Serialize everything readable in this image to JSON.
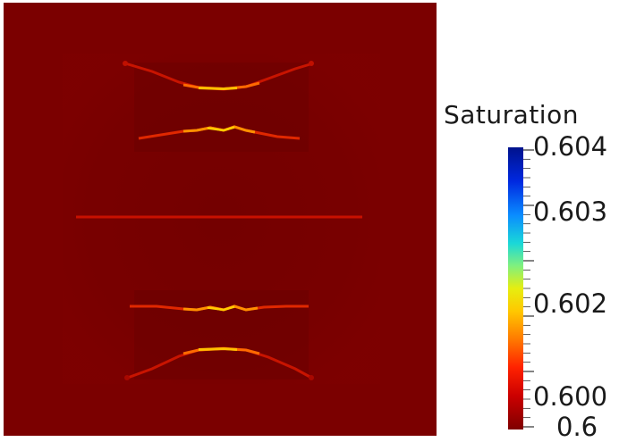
{
  "legend": {
    "title": "Saturation",
    "labels": {
      "max": "0.604",
      "l603": "0.603",
      "l602": "0.602",
      "l600": "0.600",
      "min": "0.6"
    }
  },
  "colors": {
    "background_field": "#7a0000",
    "colormap": [
      "#7f0000",
      "#d40000",
      "#ff3a00",
      "#ff9a00",
      "#f2e600",
      "#8ff07a",
      "#19d9e6",
      "#0a66ff",
      "#001a9c"
    ]
  },
  "field": {
    "value_range": [
      0.6,
      0.604
    ],
    "background_value": 0.6002,
    "features": [
      "upper-arc",
      "upper-wave",
      "center-line",
      "lower-wave",
      "lower-arc"
    ]
  }
}
